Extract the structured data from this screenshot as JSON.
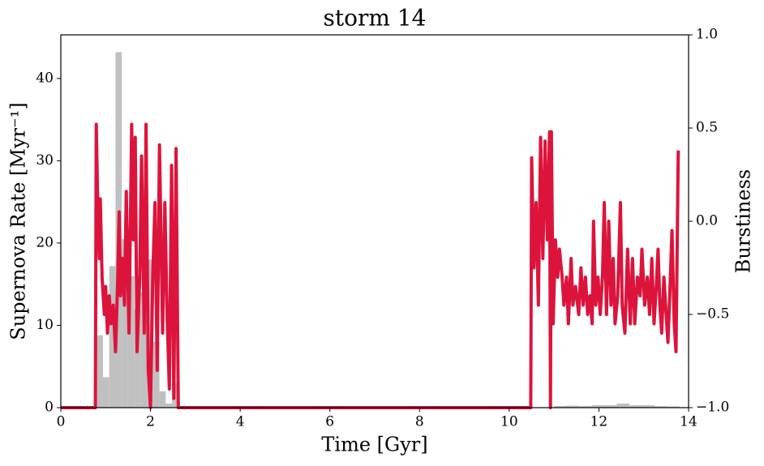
{
  "chart_data": {
    "type": "histogram",
    "title": "storm 14",
    "xlabel": "Time [Gyr]",
    "ylabel": "Supernova Rate [Myr⁻¹]",
    "y2label": "Burstiness",
    "xlim": [
      0,
      14
    ],
    "xticks": [
      0,
      2,
      4,
      6,
      8,
      10,
      12,
      14
    ],
    "ylim": [
      0,
      45.3
    ],
    "yticks": [
      0,
      10,
      20,
      30,
      40
    ],
    "y2lim": [
      -1,
      1
    ],
    "y2ticks": [
      {
        "value": -1,
        "label": "−1.0"
      },
      {
        "value": -0.5,
        "label": "−0.5"
      },
      {
        "value": 0,
        "label": "0.0"
      },
      {
        "value": 0.5,
        "label": "0.5"
      },
      {
        "value": 1,
        "label": "1.0"
      }
    ],
    "series": [
      {
        "type": "histogram",
        "color": "#c0c0c0",
        "bins": [
          0.8,
          0.94,
          1.08,
          1.22,
          1.36,
          1.5,
          1.64,
          1.78,
          1.92,
          2.06,
          2.2,
          2.34,
          2.48,
          2.62,
          11.0,
          11.28,
          11.56,
          11.84,
          12.12,
          12.4,
          12.68,
          12.96,
          13.24,
          13.52,
          13.8
        ],
        "values": [
          8.8,
          3.7,
          17.2,
          43.2,
          20.5,
          16,
          12,
          14,
          18,
          8,
          2,
          0.5,
          3,
          0,
          0.2,
          0.25,
          0.2,
          0.3,
          0.3,
          0.5,
          0.3,
          0.3,
          0.2,
          0.15
        ]
      },
      {
        "type": "line",
        "axis": "y2",
        "color": "#dc143c",
        "x": [
          0,
          0.77,
          0.79,
          0.83,
          0.86,
          0.88,
          0.92,
          0.97,
          1.0,
          1.04,
          1.08,
          1.12,
          1.17,
          1.22,
          1.27,
          1.3,
          1.33,
          1.37,
          1.42,
          1.46,
          1.52,
          1.58,
          1.62,
          1.66,
          1.7,
          1.76,
          1.8,
          1.86,
          1.9,
          1.95,
          2.0,
          2.05,
          2.1,
          2.15,
          2.2,
          2.27,
          2.32,
          2.37,
          2.42,
          2.47,
          2.52,
          2.57,
          2.62,
          10.48,
          10.5,
          10.55,
          10.6,
          10.65,
          10.7,
          10.75,
          10.8,
          10.85,
          10.9,
          10.92,
          10.94,
          10.98,
          11.03,
          11.08,
          11.12,
          11.18,
          11.22,
          11.28,
          11.32,
          11.38,
          11.42,
          11.48,
          11.55,
          11.6,
          11.65,
          11.7,
          11.75,
          11.8,
          11.85,
          11.88,
          11.93,
          11.98,
          12.03,
          12.08,
          12.12,
          12.17,
          12.22,
          12.27,
          12.32,
          12.36,
          12.42,
          12.48,
          12.52,
          12.58,
          12.64,
          12.7,
          12.75,
          12.8,
          12.86,
          12.92,
          12.96,
          13.02,
          13.08,
          13.13,
          13.18,
          13.23,
          13.28,
          13.32,
          13.36,
          13.4,
          13.45,
          13.5,
          13.54,
          13.58,
          13.63,
          13.68,
          13.72,
          13.77
        ],
        "values": [
          -1,
          -1,
          0.52,
          0.0,
          -0.2,
          0.12,
          -0.3,
          -0.5,
          -0.35,
          -0.6,
          -0.4,
          -0.55,
          -0.45,
          -0.7,
          -0.3,
          0.05,
          -0.4,
          -0.2,
          -0.45,
          0.16,
          -0.6,
          0.52,
          -0.1,
          0.45,
          -0.7,
          -0.3,
          0.35,
          -0.6,
          0.52,
          -0.8,
          -1,
          -0.3,
          0.1,
          -0.8,
          0.41,
          -0.6,
          0.1,
          -0.5,
          -0.9,
          0.3,
          -0.95,
          0.39,
          -1,
          -1,
          0.34,
          -0.25,
          0.1,
          -0.45,
          0.45,
          -0.2,
          0.43,
          -0.1,
          0.48,
          -1,
          0.48,
          -0.55,
          -0.1,
          -0.3,
          -0.15,
          -0.3,
          -0.45,
          -0.3,
          -0.55,
          -0.2,
          -0.45,
          -0.35,
          -0.5,
          -0.25,
          -0.45,
          -0.3,
          -0.5,
          -0.4,
          -0.55,
          0.0,
          -0.45,
          -0.3,
          -0.5,
          -0.3,
          0.1,
          -0.5,
          0.0,
          -0.45,
          -0.2,
          -0.55,
          -0.4,
          0.1,
          -0.45,
          -0.6,
          -0.15,
          -0.55,
          -0.2,
          -0.55,
          -0.3,
          -0.4,
          -0.15,
          -0.45,
          -0.3,
          -0.5,
          -0.2,
          -0.55,
          -0.35,
          -0.15,
          -0.45,
          -0.6,
          -0.3,
          -0.5,
          -0.65,
          -0.4,
          -0.05,
          -0.55,
          -0.7,
          0.38
        ]
      }
    ]
  }
}
